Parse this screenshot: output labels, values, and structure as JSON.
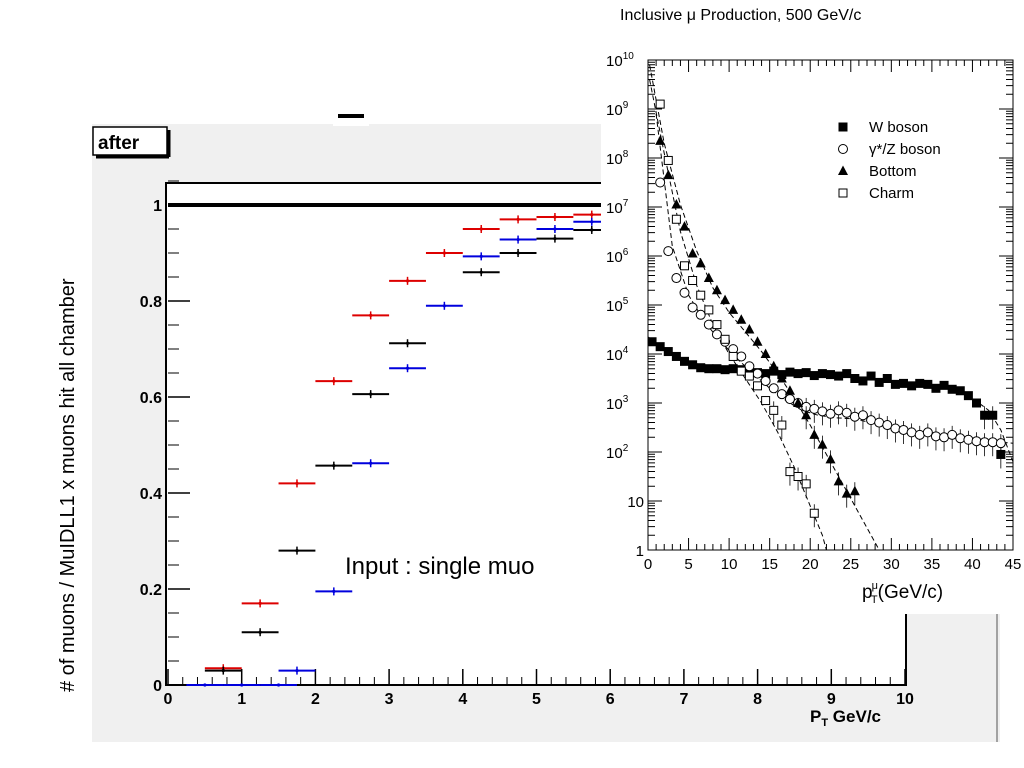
{
  "chart_data": [
    {
      "type": "scatter",
      "ylabel": "# of muons / MuIDLL1 x muons hit all chamber",
      "xlabel": "P",
      "xlabel_sub": "T",
      "xlabel_unit": " GeV/c",
      "hist_label": "after",
      "annotation": "Input : single muo",
      "xlim": [
        0,
        10
      ],
      "ylim": [
        0,
        1.05
      ],
      "x_ticks": [
        "0",
        "1",
        "2",
        "3",
        "4",
        "5",
        "6",
        "7",
        "8",
        "9",
        "10"
      ],
      "y_ticks": [
        {
          "v": 0,
          "label": "0"
        },
        {
          "v": 0.2,
          "label": "0.2"
        },
        {
          "v": 0.4,
          "label": "0.4"
        },
        {
          "v": 0.6,
          "label": "0.6"
        },
        {
          "v": 0.8,
          "label": "0.8"
        },
        {
          "v": 1,
          "label": "1"
        }
      ],
      "series": [
        {
          "color": "#dd0000",
          "points": [
            [
              0.75,
              0.035
            ],
            [
              1.25,
              0.17
            ],
            [
              1.75,
              0.42
            ],
            [
              2.25,
              0.633
            ],
            [
              2.75,
              0.77
            ],
            [
              3.25,
              0.842
            ],
            [
              3.75,
              0.9
            ],
            [
              4.25,
              0.95
            ],
            [
              4.75,
              0.97
            ],
            [
              5.25,
              0.975
            ],
            [
              5.75,
              0.98
            ]
          ]
        },
        {
          "color": "#000000",
          "points": [
            [
              0.75,
              0.03
            ],
            [
              1.25,
              0.11
            ],
            [
              1.75,
              0.28
            ],
            [
              2.25,
              0.457
            ],
            [
              2.75,
              0.606
            ],
            [
              3.25,
              0.712
            ],
            [
              4.25,
              0.86
            ],
            [
              4.75,
              0.9
            ],
            [
              5.25,
              0.93
            ],
            [
              5.75,
              0.948
            ]
          ]
        },
        {
          "color": "#0000dd",
          "points": [
            [
              0.5,
              0
            ],
            [
              1,
              0
            ],
            [
              1.5,
              0
            ],
            [
              1.75,
              0.03
            ],
            [
              2.25,
              0.195
            ],
            [
              2.75,
              0.462
            ],
            [
              3.25,
              0.66
            ],
            [
              3.75,
              0.79
            ],
            [
              4.25,
              0.893
            ],
            [
              4.75,
              0.928
            ],
            [
              5.25,
              0.95
            ],
            [
              5.75,
              0.965
            ]
          ]
        }
      ]
    },
    {
      "type": "scatter",
      "title": "Inclusive μ Production, 500 GeV/c",
      "xlabel": "p",
      "xlabel_sup": "μ",
      "xlabel_sub": "T",
      "xlabel_unit": "(GeV/c)",
      "y_scale": "log",
      "xlim": [
        0,
        45
      ],
      "ylim_exp": [
        0,
        10
      ],
      "x_ticks": [
        "0",
        "5",
        "10",
        "15",
        "20",
        "25",
        "30",
        "35",
        "40",
        "45"
      ],
      "y_ticks": [
        {
          "exp": 0,
          "label": "1"
        },
        {
          "exp": 1,
          "label": "10"
        },
        {
          "exp": 2,
          "base": "10",
          "sup": "2"
        },
        {
          "exp": 3,
          "base": "10",
          "sup": "3"
        },
        {
          "exp": 4,
          "base": "10",
          "sup": "4"
        },
        {
          "exp": 5,
          "base": "10",
          "sup": "5"
        },
        {
          "exp": 6,
          "base": "10",
          "sup": "6"
        },
        {
          "exp": 7,
          "base": "10",
          "sup": "7"
        },
        {
          "exp": 8,
          "base": "10",
          "sup": "8"
        },
        {
          "exp": 9,
          "base": "10",
          "sup": "9"
        },
        {
          "exp": 10,
          "base": "10",
          "sup": "10"
        }
      ],
      "legend_position": "top-right",
      "series": [
        {
          "name": "W boson",
          "marker": "filled-square",
          "points": [
            [
              0.5,
              4.25
            ],
            [
              1.5,
              4.15
            ],
            [
              2.5,
              4.05
            ],
            [
              3.5,
              3.95
            ],
            [
              4.5,
              3.85
            ],
            [
              5.5,
              3.78
            ],
            [
              6.5,
              3.72
            ],
            [
              7.5,
              3.7
            ],
            [
              8.5,
              3.7
            ],
            [
              9.5,
              3.68
            ],
            [
              10.5,
              3.7
            ],
            [
              11.5,
              3.68
            ],
            [
              12.5,
              3.65
            ],
            [
              13.5,
              3.62
            ],
            [
              14.5,
              3.6
            ],
            [
              15.5,
              3.65
            ],
            [
              16.5,
              3.58
            ],
            [
              17.5,
              3.63
            ],
            [
              18.5,
              3.6
            ],
            [
              19.5,
              3.62
            ],
            [
              20.5,
              3.56
            ],
            [
              21.5,
              3.6
            ],
            [
              22.5,
              3.58
            ],
            [
              23.5,
              3.55
            ],
            [
              24.5,
              3.6
            ],
            [
              25.5,
              3.5
            ],
            [
              26.5,
              3.45
            ],
            [
              27.5,
              3.55
            ],
            [
              28.5,
              3.42
            ],
            [
              29.5,
              3.5
            ],
            [
              30.5,
              3.38
            ],
            [
              31.5,
              3.4
            ],
            [
              32.5,
              3.35
            ],
            [
              33.5,
              3.4
            ],
            [
              34.5,
              3.38
            ],
            [
              35.5,
              3.3
            ],
            [
              36.5,
              3.36
            ],
            [
              37.5,
              3.28
            ],
            [
              38.5,
              3.25
            ],
            [
              39.5,
              3.15
            ],
            [
              40.5,
              3.0
            ],
            [
              41.5,
              2.75
            ],
            [
              42.5,
              2.75
            ],
            [
              43.5,
              1.95
            ]
          ]
        },
        {
          "name": "γ*/Z boson",
          "marker": "open-circle",
          "points": [
            [
              1.5,
              7.5
            ],
            [
              2.5,
              6.1
            ],
            [
              3.5,
              5.55
            ],
            [
              4.5,
              5.25
            ],
            [
              5.5,
              4.95
            ],
            [
              6.5,
              4.8
            ],
            [
              7.5,
              4.6
            ],
            [
              8.5,
              4.4
            ],
            [
              9.5,
              4.25
            ],
            [
              10.5,
              4.1
            ],
            [
              11.5,
              3.95
            ],
            [
              12.5,
              3.75
            ],
            [
              13.5,
              3.6
            ],
            [
              14.5,
              3.45
            ],
            [
              15.5,
              3.3
            ],
            [
              16.5,
              3.18
            ],
            [
              17.5,
              3.08
            ],
            [
              18.5,
              3.0
            ],
            [
              19.5,
              2.92
            ],
            [
              20.5,
              2.88
            ],
            [
              21.5,
              2.83
            ],
            [
              22.5,
              2.78
            ],
            [
              23.5,
              2.85
            ],
            [
              24.5,
              2.8
            ],
            [
              25.5,
              2.72
            ],
            [
              26.5,
              2.75
            ],
            [
              27.5,
              2.65
            ],
            [
              28.5,
              2.6
            ],
            [
              29.5,
              2.55
            ],
            [
              30.5,
              2.48
            ],
            [
              31.5,
              2.45
            ],
            [
              32.5,
              2.4
            ],
            [
              33.5,
              2.35
            ],
            [
              34.5,
              2.4
            ],
            [
              35.5,
              2.32
            ],
            [
              36.5,
              2.3
            ],
            [
              37.5,
              2.35
            ],
            [
              38.5,
              2.28
            ],
            [
              39.5,
              2.25
            ],
            [
              40.5,
              2.22
            ],
            [
              41.5,
              2.2
            ],
            [
              42.5,
              2.2
            ],
            [
              43.5,
              2.18
            ]
          ]
        },
        {
          "name": "Bottom",
          "marker": "filled-triangle",
          "points": [
            [
              1.5,
              8.35
            ],
            [
              2.5,
              7.65
            ],
            [
              3.5,
              7.05
            ],
            [
              4.5,
              6.6
            ],
            [
              5.5,
              6.05
            ],
            [
              6.5,
              5.85
            ],
            [
              7.5,
              5.55
            ],
            [
              8.5,
              5.3
            ],
            [
              9.5,
              5.1
            ],
            [
              10.5,
              4.9
            ],
            [
              11.5,
              4.7
            ],
            [
              12.5,
              4.5
            ],
            [
              13.5,
              4.25
            ],
            [
              14.5,
              4.0
            ],
            [
              15.5,
              3.75
            ],
            [
              16.5,
              3.5
            ],
            [
              17.5,
              3.25
            ],
            [
              18.5,
              3.0
            ],
            [
              19.5,
              2.75
            ],
            [
              20.5,
              2.35
            ],
            [
              21.5,
              2.15
            ],
            [
              22.5,
              1.85
            ],
            [
              23.5,
              1.4
            ],
            [
              24.5,
              1.15
            ],
            [
              25.5,
              1.2
            ]
          ]
        },
        {
          "name": "Charm",
          "marker": "open-square",
          "points": [
            [
              1.5,
              9.1
            ],
            [
              2.5,
              7.95
            ],
            [
              3.5,
              6.75
            ],
            [
              4.5,
              5.8
            ],
            [
              5.5,
              5.5
            ],
            [
              6.5,
              5.2
            ],
            [
              7.5,
              4.9
            ],
            [
              8.5,
              4.6
            ],
            [
              9.5,
              4.3
            ],
            [
              10.5,
              3.95
            ],
            [
              11.5,
              3.65
            ],
            [
              12.5,
              3.55
            ],
            [
              13.5,
              3.35
            ],
            [
              14.5,
              3.05
            ],
            [
              15.5,
              2.85
            ],
            [
              16.5,
              2.55
            ],
            [
              17.5,
              1.6
            ],
            [
              18.5,
              1.5
            ],
            [
              19.5,
              1.35
            ],
            [
              20.5,
              0.75
            ]
          ]
        }
      ],
      "fit_lines": [
        {
          "points": [
            [
              0.2,
              9.9
            ],
            [
              2,
              8.3
            ],
            [
              4,
              7.05
            ],
            [
              6,
              6.1
            ],
            [
              8,
              5.35
            ],
            [
              10,
              4.85
            ],
            [
              12,
              4.45
            ],
            [
              14,
              4.05
            ],
            [
              16,
              3.6
            ],
            [
              18,
              3.1
            ],
            [
              20,
              2.55
            ],
            [
              22,
              1.95
            ],
            [
              24,
              1.35
            ],
            [
              26,
              0.75
            ],
            [
              28,
              0.15
            ],
            [
              28.5,
              0
            ]
          ]
        },
        {
          "points": [
            [
              0.2,
              9.6
            ],
            [
              2,
              8.1
            ],
            [
              4,
              6.5
            ],
            [
              6,
              5.4
            ],
            [
              8,
              4.6
            ],
            [
              10,
              4.0
            ],
            [
              12,
              3.5
            ],
            [
              14,
              3.0
            ],
            [
              16,
              2.4
            ],
            [
              18,
              1.7
            ],
            [
              20,
              0.9
            ],
            [
              21.5,
              0.3
            ],
            [
              22,
              0
            ]
          ]
        },
        {
          "points": [
            [
              1,
              8.9
            ],
            [
              3,
              6.2
            ],
            [
              5,
              5.2
            ],
            [
              7,
              4.65
            ],
            [
              9,
              4.25
            ],
            [
              11,
              3.9
            ],
            [
              13,
              3.6
            ],
            [
              15,
              3.3
            ],
            [
              17,
              3.05
            ],
            [
              19,
              2.85
            ],
            [
              21,
              2.75
            ],
            [
              23,
              2.7
            ],
            [
              25,
              2.68
            ],
            [
              27,
              2.62
            ],
            [
              30,
              2.5
            ],
            [
              33,
              2.4
            ],
            [
              36,
              2.33
            ],
            [
              39,
              2.27
            ],
            [
              42,
              2.22
            ],
            [
              45,
              2.18
            ]
          ]
        },
        {
          "points": [
            [
              0,
              4.35
            ],
            [
              2,
              4.1
            ],
            [
              4,
              3.92
            ],
            [
              6,
              3.8
            ],
            [
              10,
              3.72
            ],
            [
              15,
              3.66
            ],
            [
              20,
              3.6
            ],
            [
              25,
              3.55
            ],
            [
              30,
              3.45
            ],
            [
              35,
              3.35
            ],
            [
              38,
              3.25
            ],
            [
              40,
              3.1
            ],
            [
              42,
              2.85
            ],
            [
              43.5,
              2.45
            ],
            [
              45,
              1.8
            ]
          ]
        }
      ]
    }
  ]
}
